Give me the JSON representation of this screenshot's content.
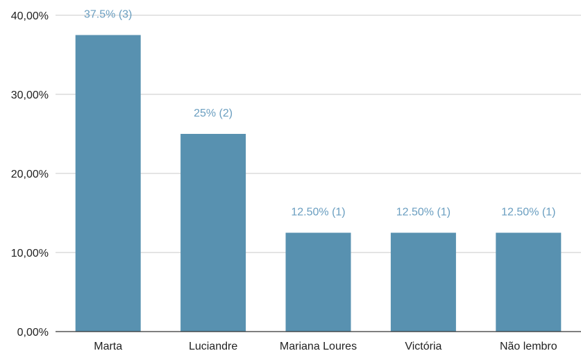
{
  "chart_data": {
    "type": "bar",
    "title": "",
    "xlabel": "",
    "ylabel": "",
    "categories": [
      "Marta",
      "Luciandre",
      "Mariana Loures",
      "Victória",
      "Não lembro"
    ],
    "values": [
      37.5,
      25,
      12.5,
      12.5,
      12.5
    ],
    "data_labels": [
      "37.5% (3)",
      "25% (2)",
      "12.50% (1)",
      "12.50% (1)",
      "12.50% (1)"
    ],
    "ylim": [
      0,
      40
    ],
    "yticks": [
      0,
      10,
      20,
      30,
      40
    ],
    "ytick_labels": [
      "0,00%",
      "10,00%",
      "20,00%",
      "30,00%",
      "40,00%"
    ],
    "grid": true,
    "legend": "none",
    "colors": {
      "bar": "#5891b0",
      "data_label": "#6a9ec0",
      "grid": "#c8c8c8",
      "axis": "#333333"
    }
  }
}
